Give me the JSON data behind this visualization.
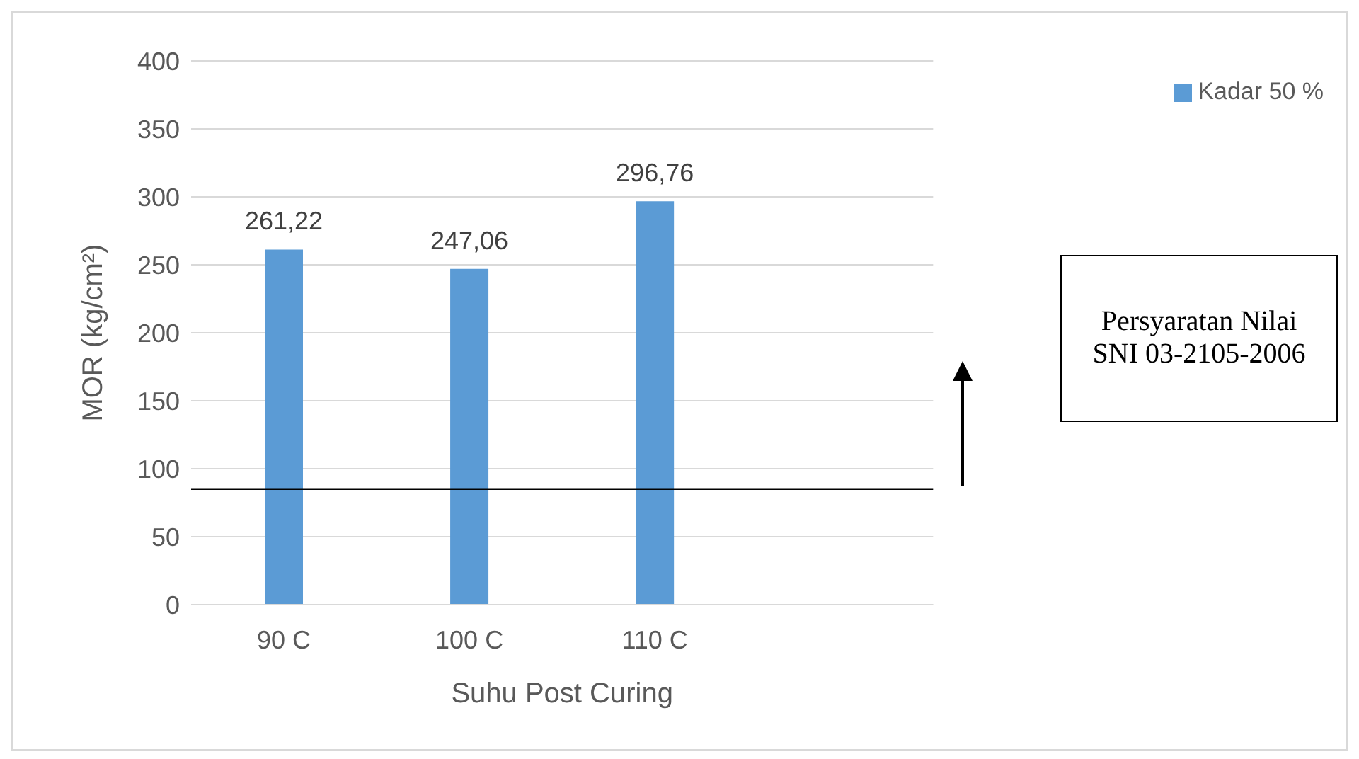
{
  "chart_data": {
    "type": "bar",
    "xlabel": "Suhu Post Curing",
    "ylabel": "MOR (kg/cm²)",
    "categories": [
      "90 C",
      "100  C",
      "110 C",
      null
    ],
    "series": [
      {
        "name": "Kadar 50 %",
        "color": "#5b9bd5",
        "values": [
          261.22,
          247.06,
          296.76,
          null
        ],
        "value_labels": [
          "261,22",
          "247,06",
          "296,76",
          null
        ]
      }
    ],
    "ylim": [
      0,
      400
    ],
    "yticks": [
      0,
      50,
      100,
      150,
      200,
      250,
      300,
      350,
      400
    ],
    "grid": "y",
    "legend": "top right",
    "ref_lines": [
      {
        "axis": "y",
        "value": 85,
        "color": "#000000"
      }
    ],
    "annotations": [
      "Persyaratan Nilai SNI 03-2105-2006"
    ]
  }
}
